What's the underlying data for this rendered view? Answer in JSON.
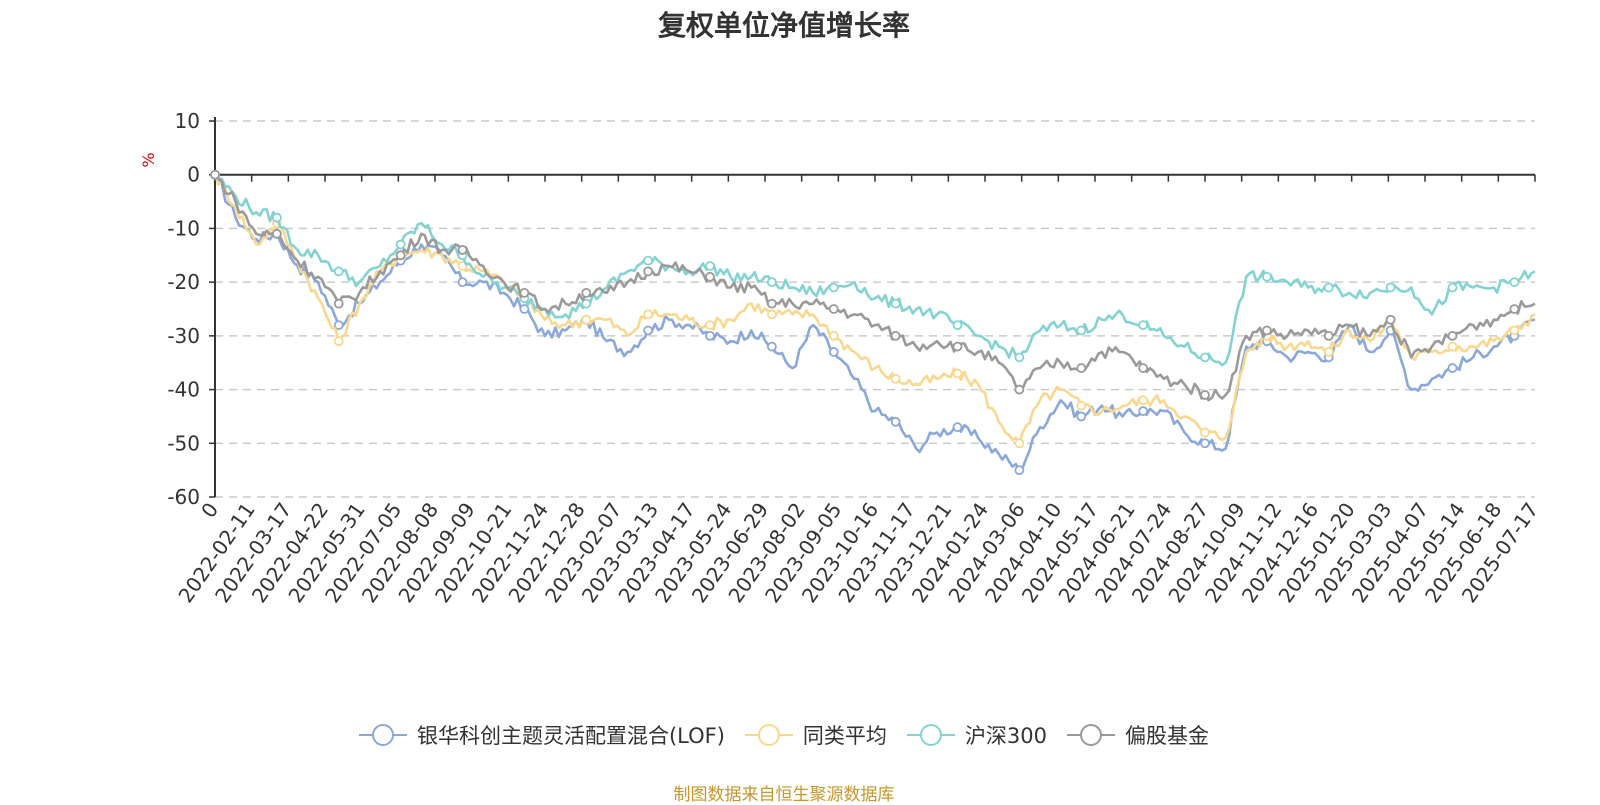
{
  "chart_data": {
    "type": "line",
    "title": "复权单位净值增长率",
    "ylabel": "%",
    "ylim": [
      -60,
      10
    ],
    "yticks": [
      10,
      0,
      -10,
      -20,
      -30,
      -40,
      -50,
      -60
    ],
    "x_tick_labels": [
      "0",
      "2022-02-11",
      "2022-03-17",
      "2022-04-22",
      "2022-05-31",
      "2022-07-05",
      "2022-08-08",
      "2022-09-09",
      "2022-10-21",
      "2022-11-24",
      "2022-12-28",
      "2023-02-07",
      "2023-03-13",
      "2023-04-17",
      "2023-05-24",
      "2023-06-29",
      "2023-08-02",
      "2023-09-05",
      "2023-10-16",
      "2023-11-17",
      "2023-12-21",
      "2024-01-24",
      "2024-03-06",
      "2024-04-10",
      "2024-05-17",
      "2024-06-21",
      "2024-07-24",
      "2024-08-27",
      "2024-10-09",
      "2024-11-12",
      "2024-12-16",
      "2025-01-20",
      "2025-03-03",
      "2025-04-07",
      "2025-05-14",
      "2025-06-18",
      "2025-07-17"
    ],
    "grid": "horizontal-dashed",
    "legend_position": "bottom-center",
    "series": [
      {
        "name": "银华科创主题灵活配置混合(LOF)",
        "color": "#8aa8da",
        "values": [
          0,
          -8,
          -12,
          -11,
          -17,
          -20,
          -28,
          -24,
          -20,
          -16,
          -13,
          -15,
          -20,
          -20,
          -22,
          -25,
          -30,
          -29,
          -27,
          -31,
          -33,
          -29,
          -27,
          -28,
          -30,
          -31,
          -29,
          -32,
          -36,
          -28,
          -33,
          -38,
          -44,
          -46,
          -51,
          -48,
          -47,
          -49,
          -52,
          -55,
          -47,
          -42,
          -45,
          -43,
          -45,
          -44,
          -44,
          -48,
          -50,
          -51,
          -32,
          -31,
          -34,
          -33,
          -34,
          -28,
          -33,
          -29,
          -40,
          -38,
          -36,
          -34,
          -32,
          -30,
          -27
        ]
      },
      {
        "name": "同类平均",
        "color": "#f9d88e",
        "values": [
          0,
          -6,
          -13,
          -9,
          -16,
          -23,
          -31,
          -24,
          -18,
          -15,
          -14,
          -15,
          -17,
          -18,
          -20,
          -23,
          -27,
          -28,
          -27,
          -27,
          -30,
          -26,
          -26,
          -27,
          -28,
          -27,
          -24,
          -26,
          -26,
          -26,
          -30,
          -33,
          -36,
          -38,
          -39,
          -38,
          -37,
          -39,
          -46,
          -50,
          -42,
          -40,
          -43,
          -44,
          -43,
          -42,
          -42,
          -45,
          -48,
          -49,
          -33,
          -30,
          -32,
          -31,
          -33,
          -29,
          -31,
          -27,
          -34,
          -33,
          -32,
          -32,
          -31,
          -29,
          -26
        ]
      },
      {
        "name": "沪深300",
        "color": "#83d3d3",
        "values": [
          0,
          -4,
          -7,
          -8,
          -14,
          -15,
          -18,
          -20,
          -17,
          -13,
          -9,
          -13,
          -15,
          -19,
          -21,
          -23,
          -25,
          -26,
          -24,
          -21,
          -18,
          -16,
          -17,
          -18,
          -17,
          -19,
          -19,
          -20,
          -21,
          -22,
          -21,
          -20,
          -23,
          -24,
          -25,
          -26,
          -28,
          -30,
          -32,
          -34,
          -29,
          -28,
          -29,
          -27,
          -26,
          -28,
          -30,
          -32,
          -34,
          -35,
          -19,
          -19,
          -20,
          -21,
          -21,
          -22,
          -22,
          -21,
          -21,
          -26,
          -21,
          -21,
          -21,
          -20,
          -18
        ]
      },
      {
        "name": "偏股基金",
        "color": "#9a9a9a",
        "values": [
          0,
          -5,
          -11,
          -11,
          -16,
          -19,
          -24,
          -22,
          -18,
          -15,
          -11,
          -14,
          -14,
          -17,
          -20,
          -22,
          -25,
          -24,
          -22,
          -22,
          -20,
          -18,
          -17,
          -18,
          -19,
          -21,
          -21,
          -24,
          -24,
          -24,
          -25,
          -26,
          -28,
          -30,
          -32,
          -31,
          -32,
          -33,
          -35,
          -40,
          -36,
          -35,
          -36,
          -33,
          -33,
          -36,
          -38,
          -39,
          -41,
          -41,
          -30,
          -29,
          -30,
          -29,
          -30,
          -28,
          -30,
          -27,
          -34,
          -32,
          -30,
          -28,
          -27,
          -25,
          -24
        ]
      }
    ]
  },
  "source_note": "制图数据来自恒生聚源数据库"
}
